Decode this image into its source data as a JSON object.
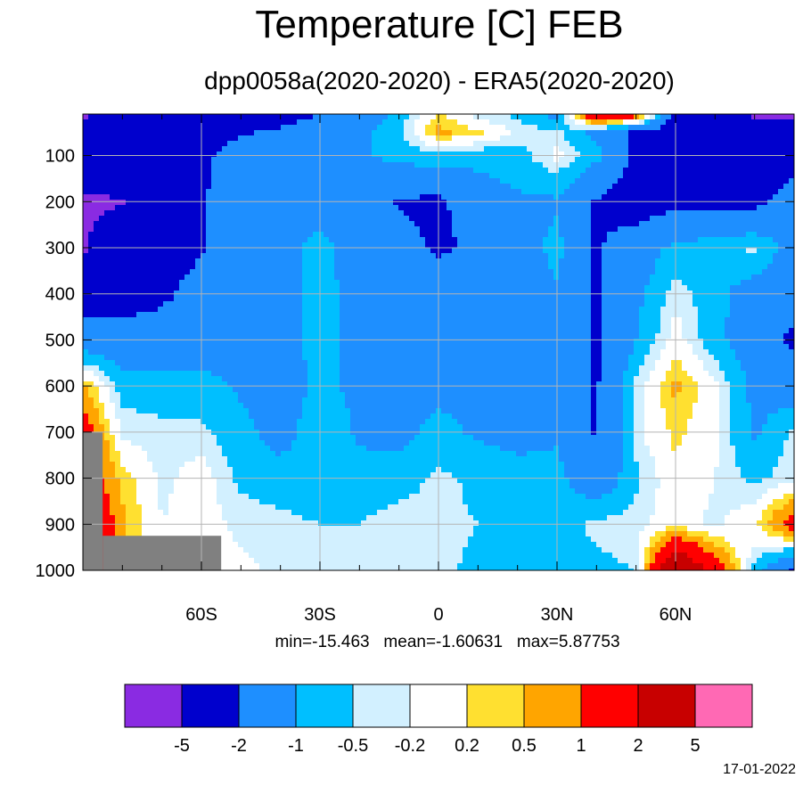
{
  "header": {
    "title": "Temperature [C] FEB",
    "subtitle": "dpp0058a(2020-2020) - ERA5(2020-2020)"
  },
  "stats": {
    "text": "min=-15.463   mean=-1.60631   max=5.87753"
  },
  "footer": {
    "date": "17-01-2022"
  },
  "chart_data": {
    "type": "heatmap",
    "title": "Temperature [C] FEB",
    "subtitle": "dpp0058a(2020-2020) - ERA5(2020-2020)",
    "x": {
      "min": -90,
      "max": 90,
      "ticks": [
        -60,
        -30,
        0,
        30,
        60
      ],
      "tick_labels": [
        "60S",
        "30S",
        "0",
        "30N",
        "60N"
      ],
      "minor_step": 10
    },
    "y": {
      "min": 10,
      "max": 1000,
      "reversed": true,
      "ticks": [
        100,
        200,
        300,
        400,
        500,
        600,
        700,
        800,
        900,
        1000
      ],
      "tick_labels": [
        "100",
        "200",
        "300",
        "400",
        "500",
        "600",
        "700",
        "800",
        "900",
        "1000"
      ]
    },
    "grid": true,
    "stats": {
      "min": -15.463,
      "mean": -1.60631,
      "max": 5.87753
    },
    "levels": [
      -5,
      -2,
      -1,
      -0.5,
      -0.2,
      0.2,
      0.5,
      1,
      2,
      5
    ],
    "level_labels": [
      "-5",
      "-2",
      "-1",
      "-0.5",
      "-0.2",
      "0.2",
      "0.5",
      "1",
      "2",
      "5"
    ],
    "colors": [
      "#8a2be2",
      "#0000cd",
      "#1e8fff",
      "#00bfff",
      "#d2f0ff",
      "#ffffff",
      "#ffe030",
      "#ffa500",
      "#ff0000",
      "#c80000",
      "#ff69b4"
    ],
    "missing_color": "#808080",
    "missing_regions": [
      {
        "lat": [
          -90,
          -85
        ],
        "p": [
          700,
          1000
        ]
      },
      {
        "lat": [
          -85,
          -55
        ],
        "p": [
          925,
          1000
        ]
      }
    ],
    "grid_data": {
      "lat": [
        -90,
        -80,
        -70,
        -60,
        -50,
        -40,
        -30,
        -20,
        -10,
        0,
        10,
        20,
        30,
        40,
        50,
        60,
        70,
        80,
        90
      ],
      "p": [
        10,
        50,
        100,
        200,
        300,
        400,
        500,
        600,
        700,
        800,
        900,
        1000
      ],
      "values": [
        [
          -5.6,
          -3,
          -3,
          -2.5,
          -2.5,
          -2.5,
          -2,
          -1.5,
          -0.8,
          0.3,
          -0.4,
          -0.6,
          -1.2,
          2.2,
          1.5,
          -2.5,
          -3,
          -5.5,
          -5.6
        ],
        [
          -2.5,
          -2.5,
          -2.5,
          -2.3,
          -2.1,
          -1.8,
          -1.5,
          -1.2,
          -0.6,
          0.6,
          0.3,
          -0.3,
          -0.4,
          -1.2,
          -2.2,
          -2.5,
          -3,
          -3,
          -3
        ],
        [
          -2.5,
          -2.5,
          -2.5,
          -2.2,
          -1.6,
          -1.6,
          -1.4,
          -1.1,
          -0.8,
          -0.6,
          -0.8,
          -0.7,
          -0.1,
          -0.8,
          -2.2,
          -2.5,
          -2.5,
          -2.5,
          -2.5
        ],
        [
          -5.5,
          -5.2,
          -2.6,
          -2.1,
          -1.4,
          -1.2,
          -1.3,
          -1.4,
          -2.1,
          -2.2,
          -1.4,
          -1.1,
          -1.1,
          -2.1,
          -2.5,
          -2.3,
          -2.2,
          -2.3,
          -1.5
        ],
        [
          -5.4,
          -2.5,
          -2.5,
          -2.1,
          -1.4,
          -1.2,
          -0.8,
          -1.4,
          -1.6,
          -2.2,
          -1.8,
          -1.4,
          -0.8,
          -2.1,
          -1.5,
          -0.8,
          -0.7,
          -0.4,
          -1.4
        ],
        [
          -2.5,
          -2.5,
          -2.2,
          -1.6,
          -1.3,
          -1.2,
          -0.8,
          -1.2,
          -1.4,
          -1.3,
          -1.2,
          -1.3,
          -1.1,
          -2.1,
          -1.2,
          -0.3,
          -0.8,
          -1.4,
          -1.5
        ],
        [
          -1.5,
          -1.5,
          -1.5,
          -1.4,
          -1.2,
          -1.2,
          -0.8,
          -1.2,
          -1.3,
          -1.3,
          -1.2,
          -1.3,
          -1.4,
          -2.1,
          -1.0,
          0.0,
          -0.8,
          -1.5,
          -2.2
        ],
        [
          0.6,
          -0.7,
          -0.7,
          -0.8,
          -1.1,
          -1.3,
          -0.9,
          -1.1,
          -1.2,
          -1.2,
          -1.2,
          -1.2,
          -1.1,
          -2.1,
          -0.4,
          0.6,
          -0.1,
          -1.2,
          -1.5
        ],
        [
          1.5,
          -0.3,
          -0.4,
          -0.4,
          -0.8,
          -1.3,
          -0.6,
          -1.1,
          -1.2,
          -0.8,
          -1.1,
          -1.2,
          -1.1,
          -2.1,
          -0.3,
          0.3,
          -0.1,
          -1.1,
          -0.4
        ],
        [
          1.5,
          0.4,
          -0.3,
          0.0,
          -0.6,
          -0.7,
          -0.8,
          -0.8,
          -0.7,
          -0.4,
          -0.6,
          -0.8,
          -0.8,
          -1.6,
          -0.6,
          0.1,
          -0.2,
          -0.6,
          -0.3
        ],
        [
          2.5,
          0.6,
          -0.2,
          0.0,
          -0.3,
          -0.4,
          -0.5,
          -0.5,
          -0.3,
          -0.4,
          -0.5,
          -0.6,
          -0.7,
          -0.4,
          -0.3,
          0.0,
          -0.3,
          0.1,
          1.5
        ],
        [
          2.5,
          0.5,
          0.0,
          -0.1,
          -0.1,
          -0.3,
          -0.4,
          -0.2,
          -0.3,
          -0.4,
          -0.6,
          -0.7,
          -0.6,
          -0.6,
          -0.5,
          3.5,
          1.5,
          -0.6,
          -2.2
        ]
      ]
    }
  }
}
